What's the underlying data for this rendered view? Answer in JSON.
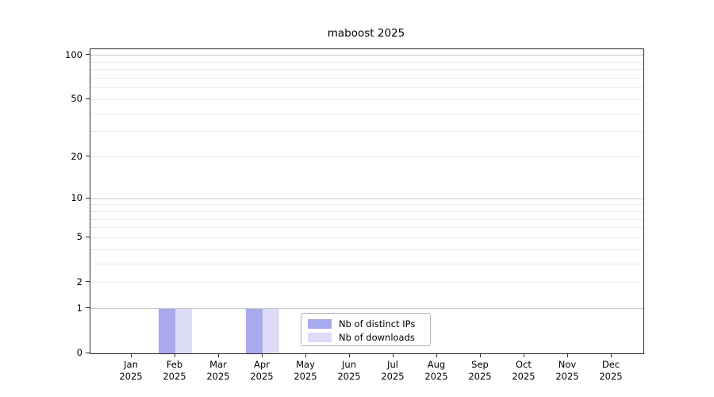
{
  "chart_data": {
    "type": "bar",
    "title": "maboost 2025",
    "categories": [
      "Jan 2025",
      "Feb 2025",
      "Mar 2025",
      "Apr 2025",
      "May 2025",
      "Jun 2025",
      "Jul 2025",
      "Aug 2025",
      "Sep 2025",
      "Oct 2025",
      "Nov 2025",
      "Dec 2025"
    ],
    "series": [
      {
        "name": "Nb of distinct IPs",
        "color": "#a9a9ef",
        "values": [
          0,
          1,
          0,
          1,
          0,
          0,
          0,
          0,
          0,
          0,
          0,
          0
        ]
      },
      {
        "name": "Nb of downloads",
        "color": "#dcdcf8",
        "values": [
          0,
          1,
          0,
          1,
          0,
          0,
          0,
          0,
          0,
          0,
          0,
          0
        ]
      }
    ],
    "xlabel": "",
    "ylabel": "",
    "y_scale": "log10(1+y)",
    "ylim": [
      0,
      110.4
    ],
    "y_tick_labels": [
      "0",
      "1",
      "2",
      "5",
      "10",
      "20",
      "50",
      "100"
    ],
    "y_major_gridlines": [
      1,
      10,
      100
    ],
    "y_minor_gridlines": [
      2,
      3,
      4,
      5,
      6,
      7,
      8,
      9,
      20,
      30,
      40,
      50,
      60,
      70,
      80,
      90
    ],
    "grid": "horizontal",
    "legend_position": "inside-bottom-center",
    "colors": {
      "background": "#ffffff",
      "spine": "#2b2b2b",
      "major_grid": "#c9c9c9",
      "minor_grid": "#ebebeb",
      "legend_border": "#b3b3b3",
      "text": "#000000"
    }
  }
}
